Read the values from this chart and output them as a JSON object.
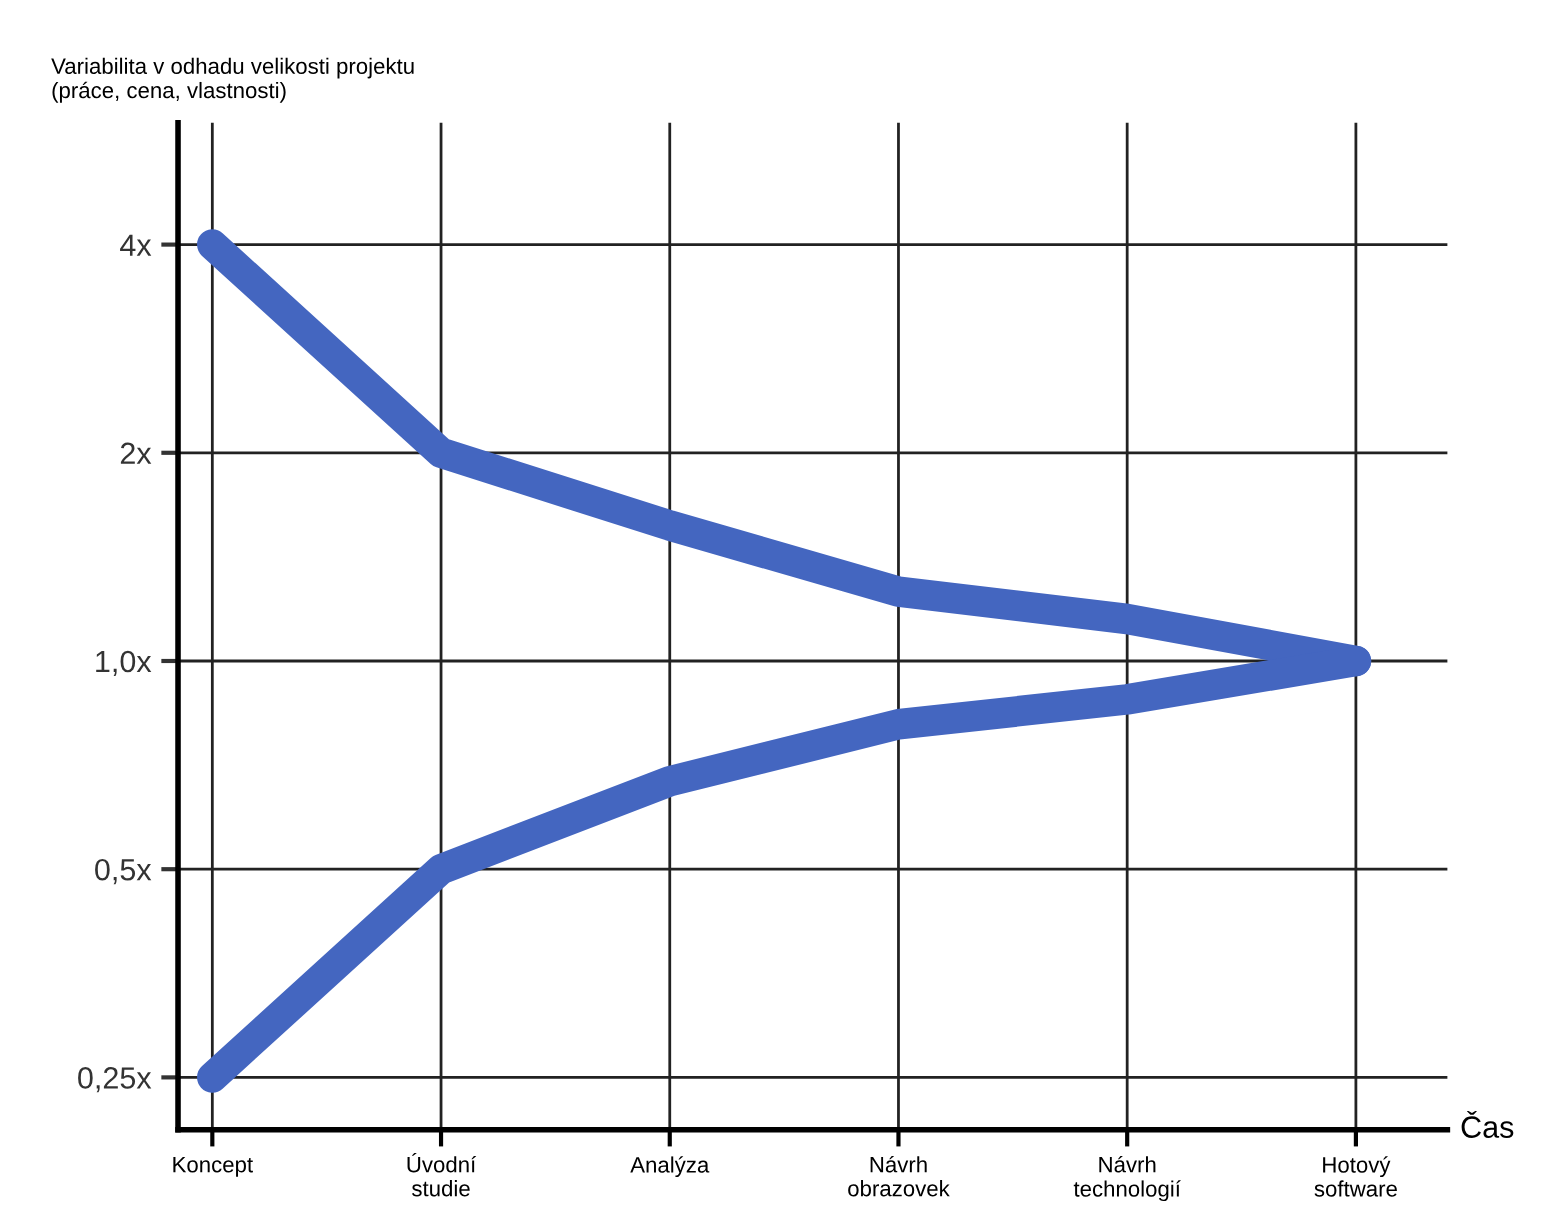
{
  "chart_data": {
    "type": "line",
    "ylabel": "Variabilita v odhadu velikosti projektu\n(práce, cena, vlastnosti)",
    "xlabel": "Čas",
    "categories": [
      "Koncept",
      "Úvodní\nstudie",
      "Analýza",
      "Návrh\nobrazovek",
      "Návrh\ntechnologií",
      "Hotový\nsoftware"
    ],
    "series": [
      {
        "color": "#4466c0",
        "values": [
          4,
          2,
          1.57,
          1.26,
          1.15,
          1
        ]
      },
      {
        "color": "#4466c0",
        "values": [
          0.25,
          0.5,
          0.67,
          0.81,
          0.88,
          1
        ]
      }
    ],
    "log": "y",
    "ylim": [
      0.21,
      6
    ],
    "yticks": [
      {
        "value": 0.25,
        "label": "0,25x"
      },
      {
        "value": 0.5,
        "label": "0,5x"
      },
      {
        "value": 1,
        "label": "1,0x"
      },
      {
        "value": 2,
        "label": "2x"
      },
      {
        "value": 4,
        "label": "4x"
      }
    ],
    "grid": true,
    "line_style": "solid"
  }
}
